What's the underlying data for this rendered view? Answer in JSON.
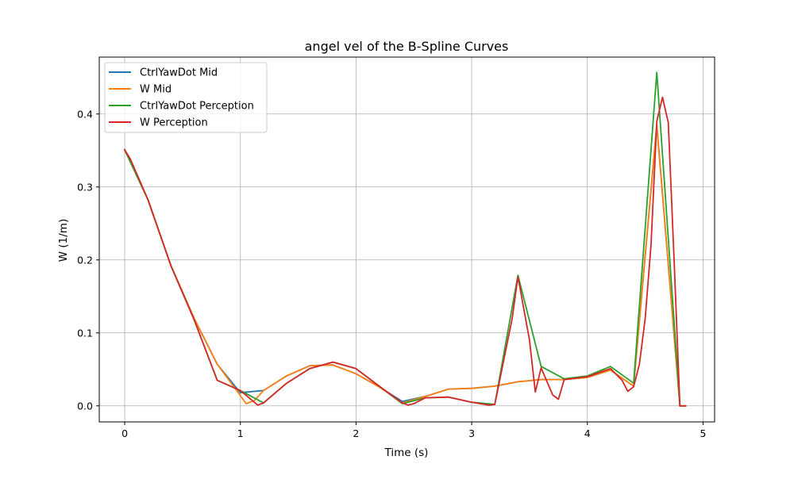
{
  "chart_data": {
    "type": "line",
    "title": "angel vel of the B-Spline Curves",
    "xlabel": "Time (s)",
    "ylabel": "W (1/m)",
    "xlim": [
      -0.22,
      5.1
    ],
    "ylim": [
      -0.022,
      0.478
    ],
    "xticks": [
      0,
      1,
      2,
      3,
      4,
      5
    ],
    "yticks": [
      0.0,
      0.1,
      0.2,
      0.3,
      0.4
    ],
    "xtick_labels": [
      "0",
      "1",
      "2",
      "3",
      "4",
      "5"
    ],
    "ytick_labels": [
      "0.0",
      "0.1",
      "0.2",
      "0.3",
      "0.4"
    ],
    "grid": true,
    "legend_position": "upper-left",
    "series": [
      {
        "name": "CtrlYawDot Mid",
        "color": "#1f77b4",
        "x": [
          0,
          0.2,
          0.4,
          0.6,
          0.8,
          1.0,
          1.2,
          1.4,
          1.6,
          1.8,
          2.0,
          2.2,
          2.4,
          2.6,
          2.8,
          3.0,
          3.2,
          3.4,
          3.6,
          3.8,
          4.0,
          4.2,
          4.4,
          4.6,
          4.8
        ],
        "y": [
          0.351,
          0.283,
          0.192,
          0.12,
          0.057,
          0.018,
          0.021,
          0.041,
          0.055,
          0.056,
          0.044,
          0.026,
          0.006,
          0.013,
          0.023,
          0.024,
          0.027,
          0.033,
          0.036,
          0.036,
          0.039,
          0.049,
          0.027,
          0.385,
          0.0
        ]
      },
      {
        "name": "W Mid",
        "color": "#ff7f0e",
        "x": [
          0,
          0.2,
          0.4,
          0.6,
          0.8,
          0.95,
          1.05,
          1.12,
          1.2,
          1.4,
          1.6,
          1.8,
          2.0,
          2.2,
          2.4,
          2.6,
          2.8,
          3.0,
          3.2,
          3.4,
          3.6,
          3.8,
          4.0,
          4.2,
          4.4,
          4.6,
          4.8
        ],
        "y": [
          0.351,
          0.283,
          0.192,
          0.12,
          0.057,
          0.025,
          0.003,
          0.007,
          0.021,
          0.041,
          0.055,
          0.056,
          0.044,
          0.026,
          0.004,
          0.013,
          0.023,
          0.024,
          0.027,
          0.033,
          0.036,
          0.036,
          0.039,
          0.049,
          0.027,
          0.385,
          0.0
        ]
      },
      {
        "name": "CtrlYawDot Perception",
        "color": "#2ca02c",
        "x": [
          0,
          0.2,
          0.4,
          0.6,
          0.8,
          1.0,
          1.2,
          1.4,
          1.6,
          1.8,
          2.0,
          2.2,
          2.4,
          2.6,
          2.8,
          3.0,
          3.2,
          3.4,
          3.6,
          3.8,
          4.0,
          4.2,
          4.4,
          4.6,
          4.8,
          4.85
        ],
        "y": [
          0.351,
          0.283,
          0.192,
          0.118,
          0.035,
          0.021,
          0.004,
          0.031,
          0.051,
          0.06,
          0.051,
          0.027,
          0.003,
          0.011,
          0.012,
          0.005,
          0.002,
          0.179,
          0.054,
          0.037,
          0.041,
          0.054,
          0.031,
          0.457,
          0.0,
          0.0
        ]
      },
      {
        "name": "W Perception",
        "color": "#d62728",
        "x": [
          0,
          0.05,
          0.2,
          0.4,
          0.6,
          0.8,
          1.0,
          1.15,
          1.2,
          1.4,
          1.6,
          1.8,
          2.0,
          2.2,
          2.4,
          2.45,
          2.5,
          2.6,
          2.8,
          3.0,
          3.15,
          3.2,
          3.35,
          3.4,
          3.5,
          3.55,
          3.6,
          3.7,
          3.75,
          3.8,
          4.0,
          4.2,
          4.3,
          4.35,
          4.4,
          4.45,
          4.5,
          4.55,
          4.6,
          4.65,
          4.7,
          4.75,
          4.8,
          4.85
        ],
        "y": [
          0.351,
          0.338,
          0.283,
          0.192,
          0.118,
          0.035,
          0.021,
          0.001,
          0.004,
          0.031,
          0.051,
          0.06,
          0.051,
          0.027,
          0.004,
          0.001,
          0.003,
          0.011,
          0.012,
          0.005,
          0.001,
          0.002,
          0.12,
          0.177,
          0.09,
          0.019,
          0.052,
          0.015,
          0.009,
          0.036,
          0.04,
          0.051,
          0.035,
          0.02,
          0.026,
          0.057,
          0.12,
          0.22,
          0.39,
          0.423,
          0.388,
          0.2,
          0.0,
          0.0
        ]
      }
    ]
  }
}
